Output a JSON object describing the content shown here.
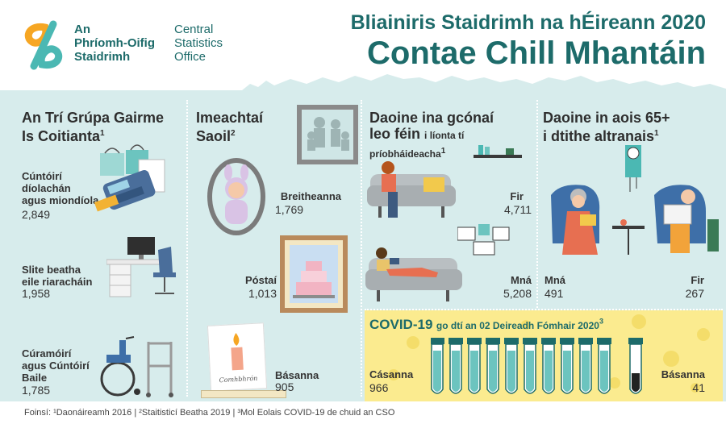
{
  "header": {
    "logo": {
      "irish_line1": "An",
      "irish_line2": "Phríomh-Oifig",
      "irish_line3": "Staidrimh",
      "english_line1": "Central",
      "english_line2": "Statistics",
      "english_line3": "Office"
    },
    "title_line1": "Bliainiris Staidrimh na hÉireann 2020",
    "title_line2": "Contae Chill Mhantáin"
  },
  "occupations": {
    "heading_line1": "An Trí Grúpa Gairme",
    "heading_line2": "Is Coitianta",
    "heading_sup": "1",
    "items": [
      {
        "label_line1": "Cúntóirí",
        "label_line2": "díolachán",
        "label_line3": "agus miondíola",
        "value": "2,849"
      },
      {
        "label_line1": "Slite beatha",
        "label_line2": "eile riaracháin",
        "label_line3": "",
        "value": "1,958"
      },
      {
        "label_line1": "Cúramóirí",
        "label_line2": "agus Cúntóirí",
        "label_line3": "Baile",
        "value": "1,785"
      }
    ]
  },
  "life_events": {
    "heading_line1": "Imeachtaí",
    "heading_line2": "Saoil",
    "heading_sup": "2",
    "births_label": "Breitheanna",
    "births_value": "1,769",
    "marriages_label": "Póstaí",
    "marriages_value": "1,013",
    "deaths_label": "Básanna",
    "deaths_value": "905",
    "card_text": "Comhbhrón"
  },
  "living_alone": {
    "heading_line1": "Daoine ina gcónaí",
    "heading_line2": "leo féin",
    "heading_small1": "i líonta tí",
    "heading_small2": "príobháideacha",
    "heading_sup": "1",
    "men_label": "Fir",
    "men_value": "4,711",
    "women_label": "Mná",
    "women_value": "5,208"
  },
  "nursing_homes": {
    "heading_line1": "Daoine in aois 65+",
    "heading_line2": "i dtithe altranais",
    "heading_sup": "1",
    "women_label": "Mná",
    "women_value": "491",
    "men_label": "Fir",
    "men_value": "267"
  },
  "covid": {
    "heading_bold": "COVID-19",
    "heading_rest": "go dtí an 02 Deireadh Fómhair 2020",
    "heading_sup": "3",
    "cases_label": "Cásanna",
    "cases_value": "966",
    "deaths_label": "Básanna",
    "deaths_value": "41"
  },
  "footer": {
    "sources": "Foinsí: ¹Daonáireamh 2016 | ²Staitisticí Beatha 2019 | ³Mol Eolais COVID-19 de chuid an CSO"
  },
  "colors": {
    "brand_teal": "#1d6b6a",
    "background": "#d7ecec",
    "covid_yellow": "#fbeb8f",
    "logo_orange": "#f6a623",
    "logo_teal": "#4bb8b3"
  }
}
